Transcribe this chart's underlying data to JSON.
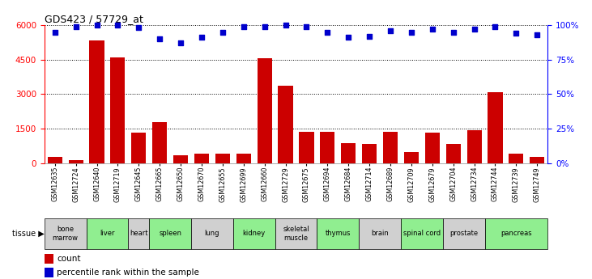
{
  "title": "GDS423 / 57729_at",
  "samples": [
    "GSM12635",
    "GSM12724",
    "GSM12640",
    "GSM12719",
    "GSM12645",
    "GSM12665",
    "GSM12650",
    "GSM12670",
    "GSM12655",
    "GSM12699",
    "GSM12660",
    "GSM12729",
    "GSM12675",
    "GSM12694",
    "GSM12684",
    "GSM12714",
    "GSM12689",
    "GSM12709",
    "GSM12679",
    "GSM12704",
    "GSM12734",
    "GSM12744",
    "GSM12739",
    "GSM12749"
  ],
  "counts": [
    270,
    130,
    5350,
    4600,
    1330,
    1800,
    330,
    430,
    430,
    430,
    4570,
    3380,
    1370,
    1370,
    870,
    820,
    1370,
    470,
    1330,
    820,
    1430,
    3100,
    430,
    270
  ],
  "percentiles": [
    95,
    99,
    100,
    100,
    98,
    90,
    87,
    91,
    95,
    99,
    99,
    100,
    99,
    95,
    91,
    92,
    96,
    95,
    97,
    95,
    97,
    99,
    94,
    93
  ],
  "tissues": [
    {
      "name": "bone\nmarrow",
      "start": 0,
      "end": 2,
      "color": "#d0d0d0"
    },
    {
      "name": "liver",
      "start": 2,
      "end": 4,
      "color": "#90ee90"
    },
    {
      "name": "heart",
      "start": 4,
      "end": 5,
      "color": "#d0d0d0"
    },
    {
      "name": "spleen",
      "start": 5,
      "end": 7,
      "color": "#90ee90"
    },
    {
      "name": "lung",
      "start": 7,
      "end": 9,
      "color": "#d0d0d0"
    },
    {
      "name": "kidney",
      "start": 9,
      "end": 11,
      "color": "#90ee90"
    },
    {
      "name": "skeletal\nmuscle",
      "start": 11,
      "end": 13,
      "color": "#d0d0d0"
    },
    {
      "name": "thymus",
      "start": 13,
      "end": 15,
      "color": "#90ee90"
    },
    {
      "name": "brain",
      "start": 15,
      "end": 17,
      "color": "#d0d0d0"
    },
    {
      "name": "spinal cord",
      "start": 17,
      "end": 19,
      "color": "#90ee90"
    },
    {
      "name": "prostate",
      "start": 19,
      "end": 21,
      "color": "#d0d0d0"
    },
    {
      "name": "pancreas",
      "start": 21,
      "end": 24,
      "color": "#90ee90"
    }
  ],
  "bar_color": "#cc0000",
  "dot_color": "#0000cc",
  "ylim_left": [
    0,
    6000
  ],
  "ylim_right": [
    0,
    100
  ],
  "yticks_left": [
    0,
    1500,
    3000,
    4500,
    6000
  ],
  "yticks_right": [
    0,
    25,
    50,
    75,
    100
  ],
  "background_color": "#ffffff",
  "title_fontsize": 9
}
